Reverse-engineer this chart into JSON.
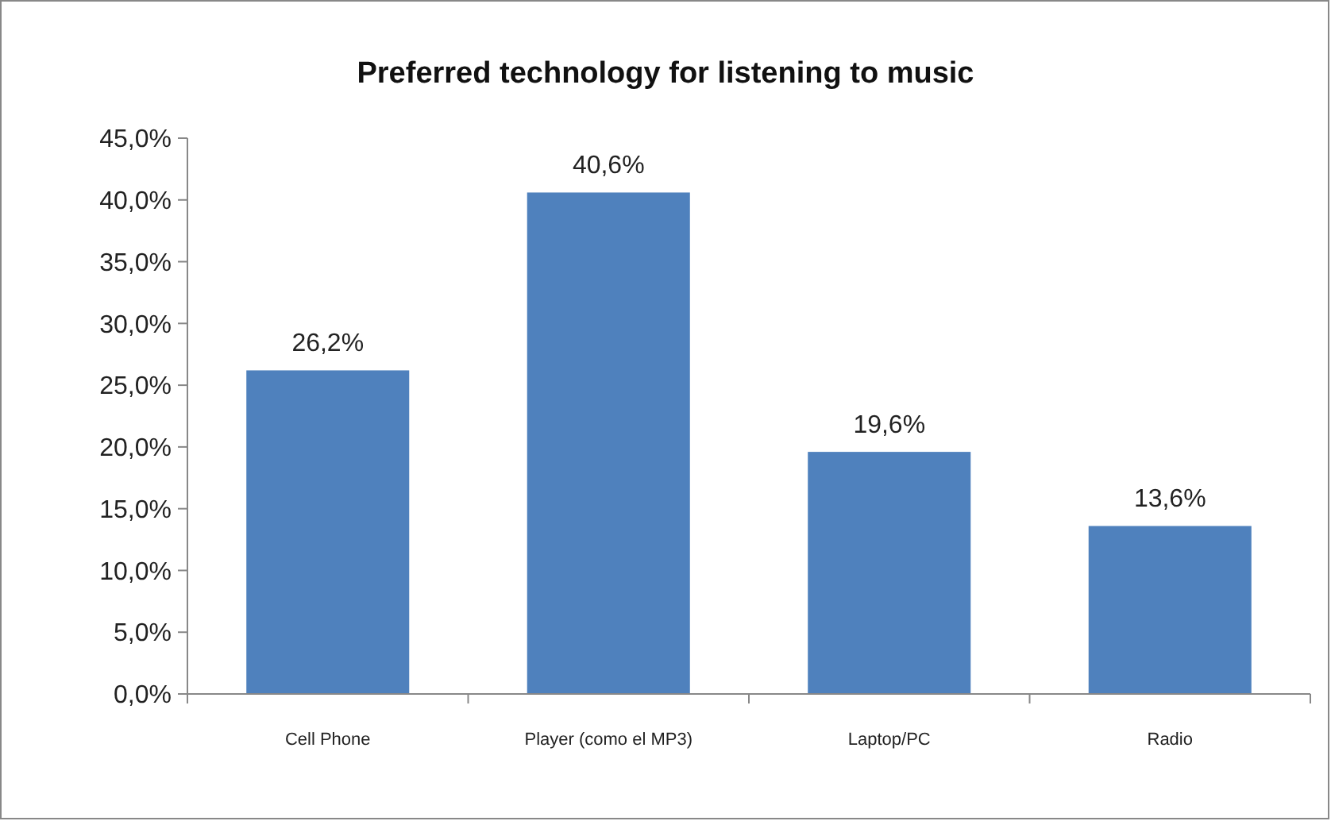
{
  "chart_data": {
    "type": "bar",
    "title": "Preferred technology for listening to music",
    "categories": [
      "Cell Phone",
      "Player (como el MP3)",
      "Laptop/PC",
      "Radio"
    ],
    "values": [
      26.2,
      40.6,
      19.6,
      13.6
    ],
    "value_labels": [
      "26,2%",
      "40,6%",
      "19,6%",
      "13,6%"
    ],
    "color": "#4f81bd",
    "ylim": [
      0,
      45
    ],
    "yticks": [
      {
        "value": 0,
        "label": "0,0%"
      },
      {
        "value": 5,
        "label": "5,0%"
      },
      {
        "value": 10,
        "label": "10,0%"
      },
      {
        "value": 15,
        "label": "15,0%"
      },
      {
        "value": 20,
        "label": "20,0%"
      },
      {
        "value": 25,
        "label": "25,0%"
      },
      {
        "value": 30,
        "label": "30,0%"
      },
      {
        "value": 35,
        "label": "35,0%"
      },
      {
        "value": 40,
        "label": "40,0%"
      },
      {
        "value": 45,
        "label": "45,0%"
      }
    ],
    "grid": false
  }
}
